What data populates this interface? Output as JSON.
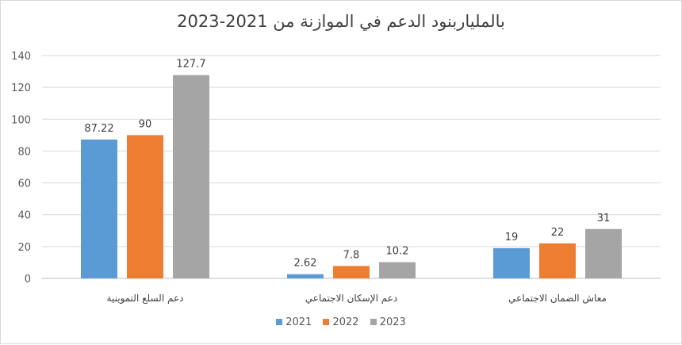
{
  "chart_data": {
    "type": "bar",
    "title": "بالمليار",
    "title_rest": "بنود الدعم في الموازنة من 2021-2023",
    "categories": [
      "دعم السلع التموينية",
      "دعم الإسكان الاجتماعي",
      "معاش الضمان الاجتماعي"
    ],
    "series": [
      {
        "name": "2021",
        "color": "#5b9bd5",
        "values": [
          87.22,
          2.62,
          19
        ],
        "labels": [
          "87.22",
          "2.62",
          "19"
        ]
      },
      {
        "name": "2022",
        "color": "#ed7d31",
        "values": [
          90,
          7.8,
          22
        ],
        "labels": [
          "90",
          "7.8",
          "22"
        ]
      },
      {
        "name": "2023",
        "color": "#a5a5a5",
        "values": [
          127.7,
          10.2,
          31
        ],
        "labels": [
          "127.7",
          "10.2",
          "31"
        ]
      }
    ],
    "ylim": [
      0,
      140
    ],
    "yticks": [
      0,
      20,
      40,
      60,
      80,
      100,
      120,
      140
    ],
    "grid": true,
    "legend_position": "bottom"
  }
}
